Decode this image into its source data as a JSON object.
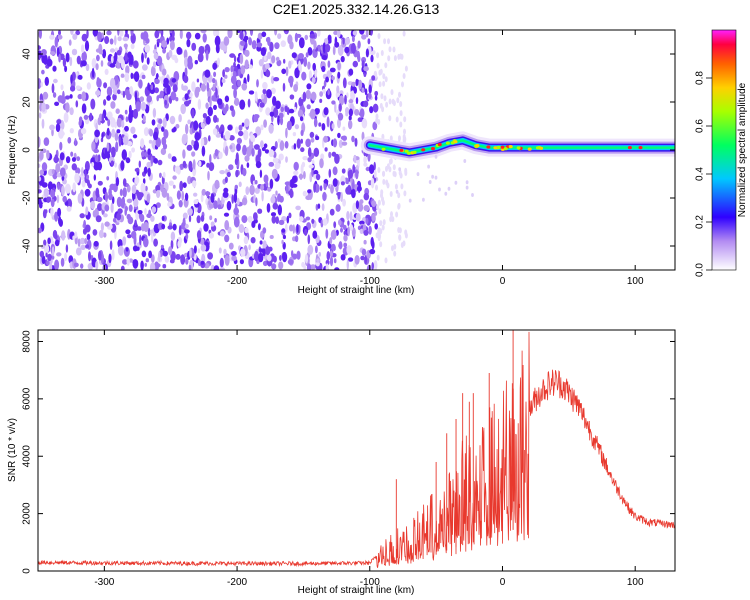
{
  "title": "C2E1.2025.332.14.26.G13",
  "chart_data": [
    {
      "type": "heatmap",
      "xlabel": "Height of straight line (km)",
      "ylabel": "Frequency (Hz)",
      "xlim": [
        -350,
        130
      ],
      "ylim": [
        -50,
        50
      ],
      "xticks": [
        -300,
        -200,
        -100,
        0,
        100
      ],
      "yticks": [
        -40,
        -20,
        0,
        20,
        40
      ],
      "colorbar": {
        "label": "Normalized spectral amplitude",
        "range": [
          0,
          1
        ],
        "ticks": [
          "0.0",
          "0.2",
          "0.4",
          "0.6",
          "0.8"
        ]
      },
      "noise_region_x": [
        -350,
        -95
      ],
      "signal_track": {
        "x": [
          -100,
          -90,
          -80,
          -70,
          -60,
          -50,
          -40,
          -30,
          -20,
          -10,
          0,
          10,
          20,
          40,
          60,
          80,
          100,
          130
        ],
        "freq_hz": [
          2,
          1,
          0,
          -1,
          0,
          1,
          3,
          4,
          2,
          1,
          1,
          1,
          1,
          1,
          1,
          1,
          1,
          1
        ]
      }
    },
    {
      "type": "line",
      "xlabel": "Height of straight line (km)",
      "ylabel": "SNR (10 * v/v)",
      "xlim": [
        -350,
        130
      ],
      "ylim": [
        0,
        8400
      ],
      "xticks": [
        -300,
        -200,
        -100,
        0,
        100
      ],
      "yticks": [
        0,
        2000,
        4000,
        6000,
        8000
      ],
      "color": "#e8392e",
      "series": [
        {
          "name": "SNR",
          "x": [
            -350,
            -300,
            -250,
            -200,
            -150,
            -100,
            -95,
            -90,
            -85,
            -80,
            -75,
            -70,
            -65,
            -60,
            -55,
            -50,
            -45,
            -40,
            -35,
            -30,
            -25,
            -20,
            -15,
            -10,
            -5,
            0,
            5,
            10,
            15,
            20,
            25,
            30,
            35,
            40,
            45,
            50,
            55,
            60,
            65,
            70,
            75,
            80,
            85,
            90,
            95,
            100,
            110,
            120,
            130
          ],
          "y": [
            300,
            280,
            270,
            260,
            260,
            280,
            500,
            700,
            900,
            1000,
            1000,
            1100,
            1300,
            1500,
            1700,
            1900,
            2200,
            2500,
            2800,
            3000,
            3200,
            3400,
            3600,
            3800,
            4000,
            4300,
            4600,
            4900,
            5200,
            5600,
            6000,
            6300,
            6500,
            6600,
            6500,
            6200,
            5900,
            5500,
            5000,
            4500,
            4000,
            3500,
            3000,
            2600,
            2200,
            1900,
            1700,
            1650,
            1600
          ]
        }
      ],
      "spikes": [
        {
          "x": -80,
          "y": 3200
        },
        {
          "x": -50,
          "y": 3800
        },
        {
          "x": -42,
          "y": 4800
        },
        {
          "x": -35,
          "y": 5300
        },
        {
          "x": -30,
          "y": 6200
        },
        {
          "x": -25,
          "y": 5900
        },
        {
          "x": -22,
          "y": 6200
        },
        {
          "x": -10,
          "y": 6900
        },
        {
          "x": 8,
          "y": 8400
        }
      ]
    }
  ]
}
